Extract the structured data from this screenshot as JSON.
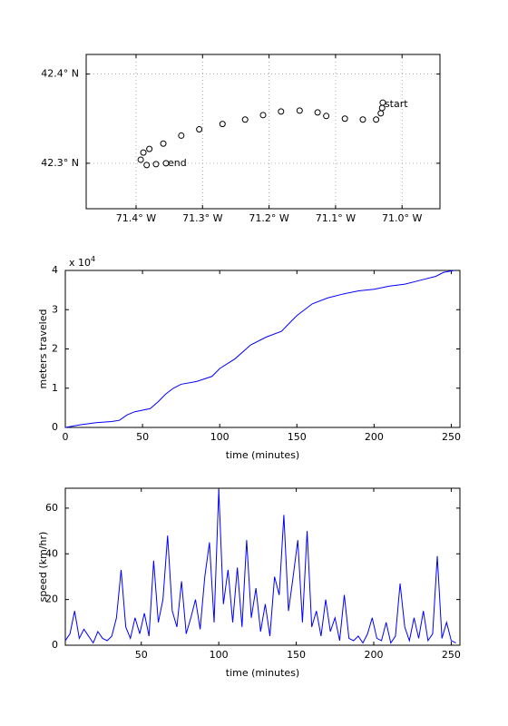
{
  "chart_data": [
    {
      "type": "scatter",
      "x": [
        -71.029,
        -71.03,
        -71.032,
        -71.039,
        -71.059,
        -71.086,
        -71.114,
        -71.127,
        -71.154,
        -71.182,
        -71.209,
        -71.236,
        -71.27,
        -71.305,
        -71.332,
        -71.359,
        -71.38,
        -71.389,
        -71.393,
        -71.384,
        -71.37,
        -71.355
      ],
      "values": [
        42.368,
        42.362,
        42.356,
        42.349,
        42.349,
        42.35,
        42.353,
        42.357,
        42.359,
        42.358,
        42.354,
        42.349,
        42.344,
        42.338,
        42.331,
        42.322,
        42.316,
        42.312,
        42.304,
        42.298,
        42.299,
        42.3
      ],
      "color": "#000000",
      "xlim": [
        -71.475,
        -70.943
      ],
      "ylim": [
        42.249,
        42.422
      ],
      "xticks": [
        {
          "value": -71.4,
          "label": "71.4° W"
        },
        {
          "value": -71.3,
          "label": "71.3° W"
        },
        {
          "value": -71.2,
          "label": "71.2° W"
        },
        {
          "value": -71.1,
          "label": "71.1° W"
        },
        {
          "value": -71.0,
          "label": "71.0° W"
        }
      ],
      "yticks": [
        {
          "value": 42.3,
          "label": "42.3° N"
        },
        {
          "value": 42.4,
          "label": "42.4° N"
        }
      ],
      "grid": true,
      "start_label": "start",
      "start_color": "#00a000",
      "end_label": "end",
      "end_color": "#e00000"
    },
    {
      "type": "line",
      "x": [
        0,
        10,
        20,
        30,
        35,
        40,
        45,
        55,
        60,
        65,
        70,
        75,
        85,
        95,
        100,
        110,
        120,
        130,
        140,
        145,
        150,
        160,
        170,
        180,
        190,
        200,
        210,
        220,
        230,
        240,
        245,
        252
      ],
      "values": [
        0,
        700,
        1200,
        1500,
        1800,
        3200,
        4000,
        4800,
        6500,
        8500,
        10000,
        11000,
        11700,
        13000,
        15000,
        17500,
        21000,
        23000,
        24500,
        26500,
        28500,
        31500,
        33000,
        34000,
        34800,
        35200,
        36000,
        36500,
        37500,
        38500,
        39500,
        40000
      ],
      "color": "#0000ff",
      "xlim": [
        0,
        255.6
      ],
      "ylim": [
        0,
        40000
      ],
      "xticks": [
        0,
        50,
        100,
        150,
        200,
        250
      ],
      "yticks": [
        0,
        {
          "value": 10000,
          "label": "1"
        },
        {
          "value": 20000,
          "label": "2"
        },
        {
          "value": 30000,
          "label": "3"
        },
        {
          "value": 40000,
          "label": "4"
        }
      ],
      "y_multiplier": {
        "base": "x 10",
        "exponent": "4"
      },
      "xlabel": "time (minutes)",
      "ylabel": "meters traveled",
      "grid": false
    },
    {
      "type": "line",
      "x": [
        1,
        4,
        7,
        10,
        13,
        16,
        19,
        22,
        25,
        28,
        31,
        34,
        37,
        40,
        43,
        46,
        49,
        52,
        55,
        58,
        61,
        64,
        67,
        70,
        73,
        76,
        79,
        82,
        85,
        88,
        91,
        94,
        97,
        100,
        103,
        106,
        109,
        112,
        115,
        118,
        121,
        124,
        127,
        130,
        133,
        136,
        139,
        142,
        145,
        148,
        151,
        154,
        157,
        160,
        163,
        166,
        169,
        172,
        175,
        178,
        181,
        184,
        187,
        190,
        193,
        196,
        199,
        202,
        205,
        208,
        211,
        214,
        217,
        220,
        223,
        226,
        229,
        232,
        235,
        238,
        241,
        244,
        247,
        250,
        253
      ],
      "values": [
        2,
        5,
        15,
        3,
        7,
        4,
        1,
        6,
        3,
        2,
        4,
        12,
        33,
        8,
        3,
        12,
        5,
        14,
        4,
        37,
        10,
        20,
        48,
        15,
        8,
        28,
        5,
        12,
        20,
        7,
        30,
        45,
        10,
        68,
        18,
        33,
        10,
        34,
        8,
        46,
        12,
        25,
        6,
        18,
        4,
        30,
        22,
        57,
        15,
        30,
        46,
        10,
        50,
        8,
        15,
        4,
        20,
        6,
        12,
        2,
        22,
        3,
        2,
        4,
        1,
        5,
        12,
        3,
        2,
        10,
        1,
        4,
        27,
        8,
        2,
        12,
        3,
        15,
        2,
        5,
        39,
        3,
        10,
        2,
        1
      ],
      "color": "#0000ff",
      "xlim": [
        1,
        255.6
      ],
      "ylim": [
        0,
        68.7
      ],
      "xticks": [
        50,
        100,
        150,
        200,
        250
      ],
      "yticks": [
        0,
        20,
        40,
        60
      ],
      "xlabel": "time (minutes)",
      "ylabel": "speed (km/hr)",
      "grid": false
    }
  ]
}
